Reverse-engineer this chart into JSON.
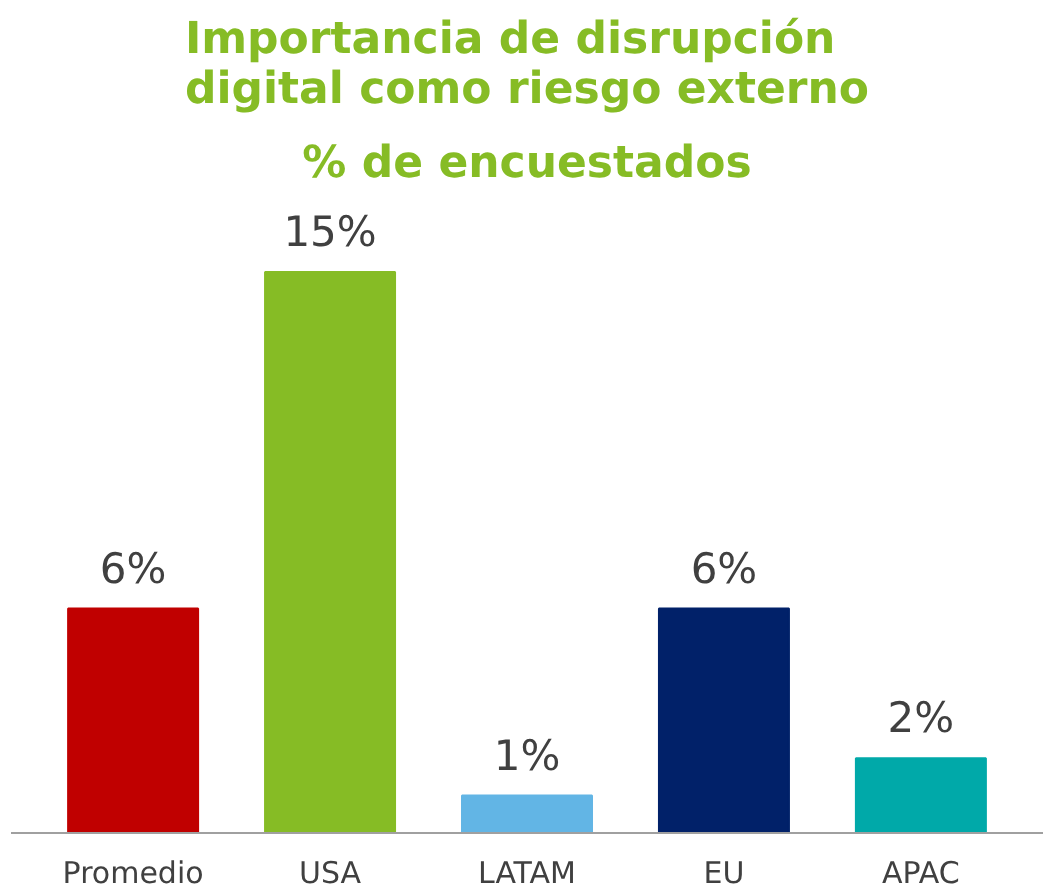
{
  "chart_data": {
    "type": "bar",
    "title": "Importancia de disrupción\ndigital como riesgo externo",
    "subtitle": "% de encuestados",
    "categories": [
      "Promedio",
      "USA",
      "LATAM",
      "EU",
      "APAC"
    ],
    "values": [
      6,
      15,
      1,
      6,
      2
    ],
    "colors": [
      "#c00000",
      "#86bc25",
      "#62b5e5",
      "#012169",
      "#00a9a9"
    ],
    "value_labels": [
      "6%",
      "15%",
      "1%",
      "6%",
      "2%"
    ],
    "grid": false
  }
}
